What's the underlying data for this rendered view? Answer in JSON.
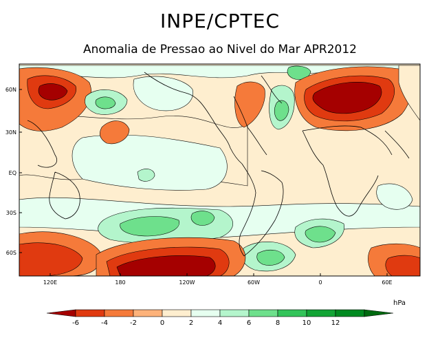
{
  "header": {
    "title": "INPE/CPTEC",
    "subtitle": "Anomalia de Pressao ao Nivel do Mar APR2012"
  },
  "axes": {
    "lat_labels": [
      "60N",
      "30N",
      "EQ",
      "30S",
      "60S"
    ],
    "lon_labels": [
      "120E",
      "180",
      "120W",
      "60W",
      "0",
      "60E"
    ]
  },
  "colorbar": {
    "unit": "hPa",
    "labels": [
      "-6",
      "-4",
      "-2",
      "0",
      "2",
      "4",
      "6",
      "8",
      "10",
      "12"
    ],
    "colors": [
      "#a50000",
      "#e03a10",
      "#f57a3a",
      "#fdb27a",
      "#feeecf",
      "#e6fff0",
      "#b4f5cc",
      "#6ee08c",
      "#33c45a",
      "#12a435",
      "#008a20",
      "#006a10"
    ]
  },
  "palette": {
    "neutral": "#ffffff",
    "land_line": "#000000"
  }
}
